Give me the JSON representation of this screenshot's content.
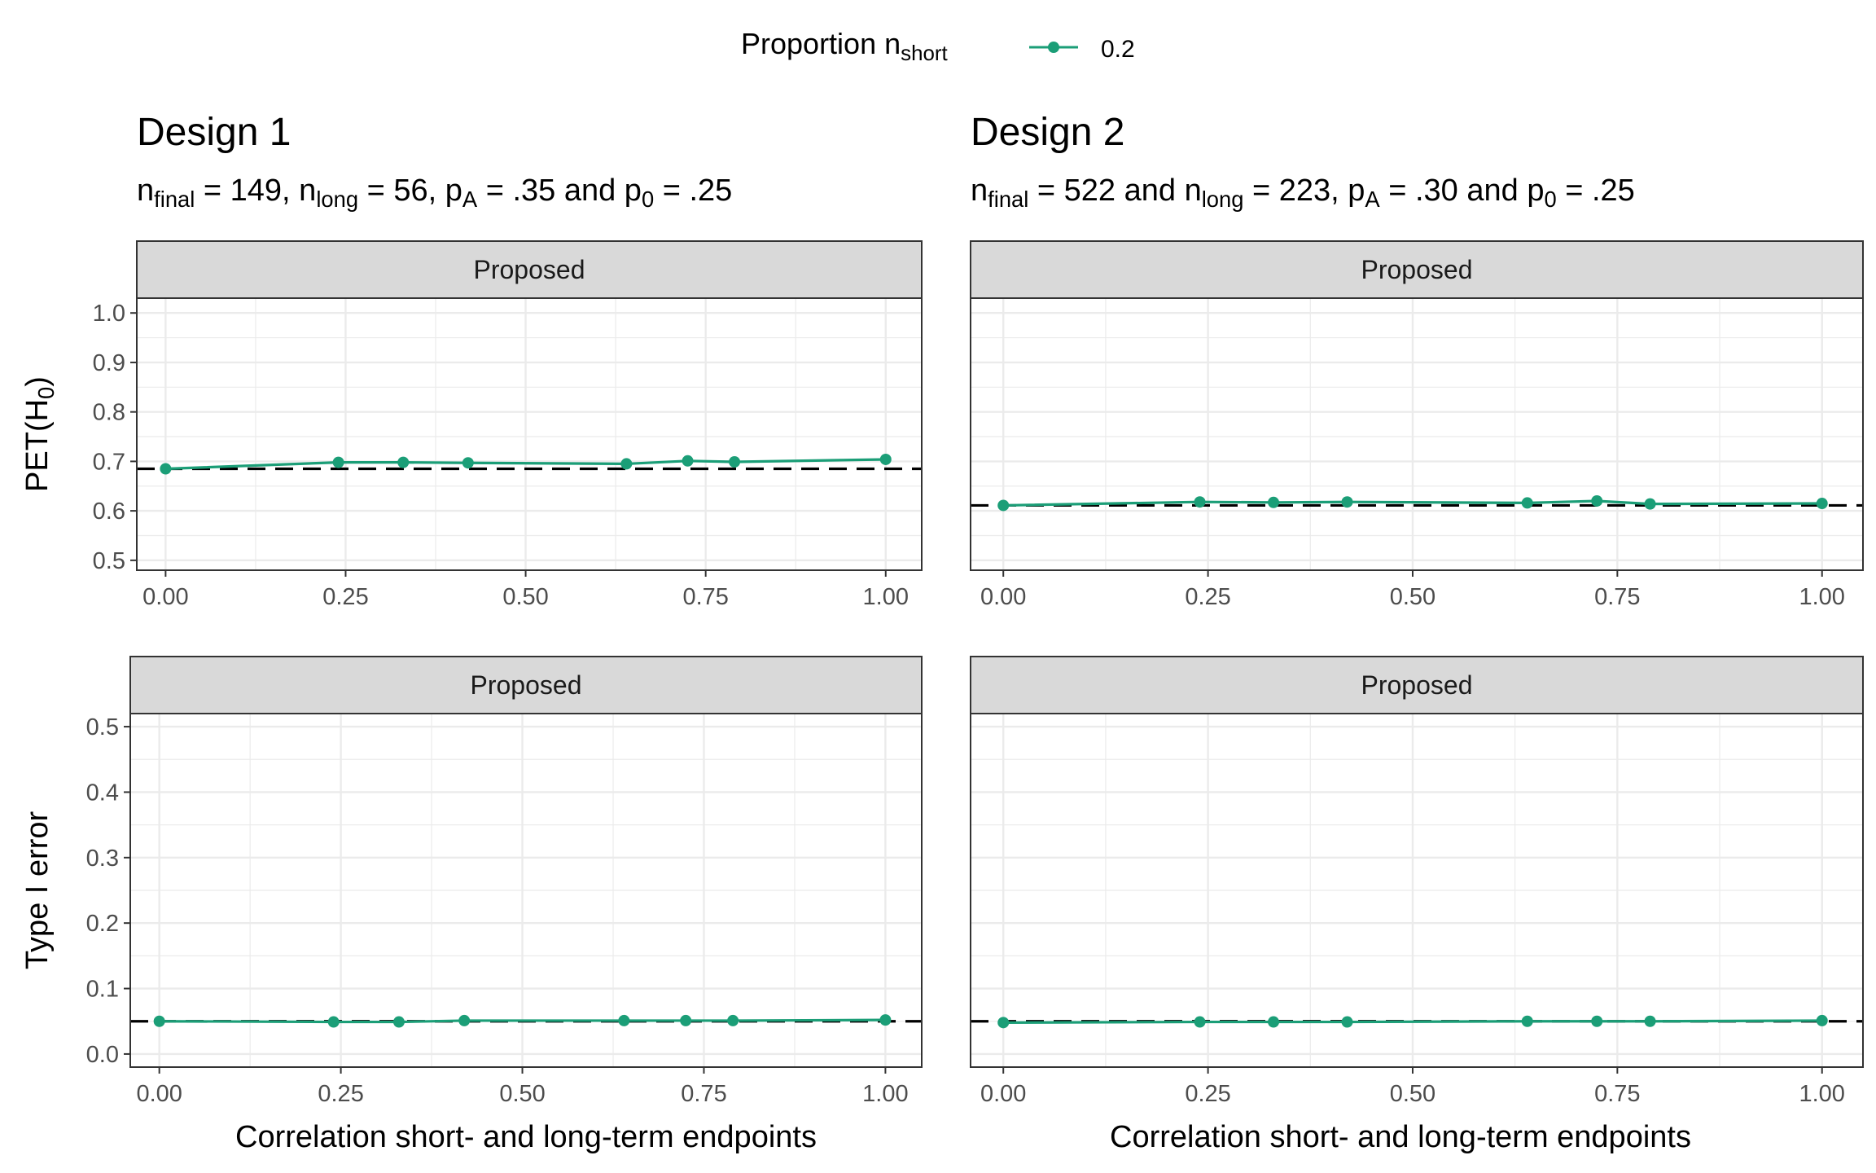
{
  "legend": {
    "title": "Proportion n",
    "title_sub": "short",
    "entries": [
      {
        "label": "0.2",
        "color": "#1b9e77"
      }
    ]
  },
  "designs": [
    {
      "title": "Design 1",
      "subtitle_parts": [
        {
          "t": "n",
          "sub": "final"
        },
        {
          "t": " = 149, "
        },
        {
          "t": "n",
          "sub": "long"
        },
        {
          "t": " = 56, "
        },
        {
          "t": "p",
          "sub": "A"
        },
        {
          "t": " = .35 and "
        },
        {
          "t": "p",
          "sub": "0"
        },
        {
          "t": " = .25"
        }
      ]
    },
    {
      "title": "Design 2",
      "subtitle_parts": [
        {
          "t": "n",
          "sub": "final"
        },
        {
          "t": " = 522 and "
        },
        {
          "t": "n",
          "sub": "long"
        },
        {
          "t": " = 223, "
        },
        {
          "t": "p",
          "sub": "A"
        },
        {
          "t": " = .30 and "
        },
        {
          "t": "p",
          "sub": "0"
        },
        {
          "t": " = .25"
        }
      ]
    }
  ],
  "x_axis_title": "Correlation short- and long-term endpoints",
  "row_axis_titles": [
    {
      "t": "PET(H",
      "sub": "0",
      "after": ")"
    },
    {
      "t": "Type I error",
      "sub": "",
      "after": ""
    }
  ],
  "colors": {
    "series": "#1b9e77",
    "reference": "#000000",
    "strip_bg": "#d9d9d9",
    "grid": "#ebebeb"
  },
  "chart_data": [
    {
      "type": "line",
      "design": "Design 1",
      "strip": "Proposed",
      "x": [
        0.0,
        0.24,
        0.33,
        0.42,
        0.64,
        0.725,
        0.79,
        1.0
      ],
      "series": [
        {
          "name": "0.2",
          "values": [
            0.685,
            0.698,
            0.698,
            0.697,
            0.695,
            0.701,
            0.699,
            0.704
          ]
        }
      ],
      "reference_line": 0.685,
      "xlim": [
        -0.04,
        1.05
      ],
      "ylim": [
        0.48,
        1.03
      ],
      "xticks": [
        "0.00",
        "0.25",
        "0.50",
        "0.75",
        "1.00"
      ],
      "yticks": [
        "0.5",
        "0.6",
        "0.7",
        "0.8",
        "0.9",
        "1.0"
      ],
      "grid": true
    },
    {
      "type": "line",
      "design": "Design 2",
      "strip": "Proposed",
      "x": [
        0.0,
        0.24,
        0.33,
        0.42,
        0.64,
        0.725,
        0.79,
        1.0
      ],
      "series": [
        {
          "name": "0.2",
          "values": [
            0.611,
            0.618,
            0.617,
            0.618,
            0.616,
            0.62,
            0.614,
            0.615
          ]
        }
      ],
      "reference_line": 0.611,
      "xlim": [
        -0.04,
        1.05
      ],
      "ylim": [
        0.48,
        1.03
      ],
      "xticks": [
        "0.00",
        "0.25",
        "0.50",
        "0.75",
        "1.00"
      ],
      "yticks": [],
      "grid": true
    },
    {
      "type": "line",
      "design": "Design 1",
      "strip": "Proposed",
      "x": [
        0.0,
        0.24,
        0.33,
        0.42,
        0.64,
        0.725,
        0.79,
        1.0
      ],
      "series": [
        {
          "name": "0.2",
          "values": [
            0.05,
            0.049,
            0.049,
            0.051,
            0.051,
            0.051,
            0.051,
            0.052
          ]
        }
      ],
      "reference_line": 0.05,
      "xlim": [
        -0.04,
        1.05
      ],
      "ylim": [
        -0.02,
        0.52
      ],
      "xticks": [
        "0.00",
        "0.25",
        "0.50",
        "0.75",
        "1.00"
      ],
      "yticks": [
        "0.0",
        "0.1",
        "0.2",
        "0.3",
        "0.4",
        "0.5"
      ],
      "grid": true
    },
    {
      "type": "line",
      "design": "Design 2",
      "strip": "Proposed",
      "x": [
        0.0,
        0.24,
        0.33,
        0.42,
        0.64,
        0.725,
        0.79,
        1.0
      ],
      "series": [
        {
          "name": "0.2",
          "values": [
            0.048,
            0.049,
            0.049,
            0.049,
            0.05,
            0.05,
            0.05,
            0.051
          ]
        }
      ],
      "reference_line": 0.05,
      "xlim": [
        -0.04,
        1.05
      ],
      "ylim": [
        -0.02,
        0.52
      ],
      "xticks": [
        "0.00",
        "0.25",
        "0.50",
        "0.75",
        "1.00"
      ],
      "yticks": [],
      "grid": true
    }
  ]
}
